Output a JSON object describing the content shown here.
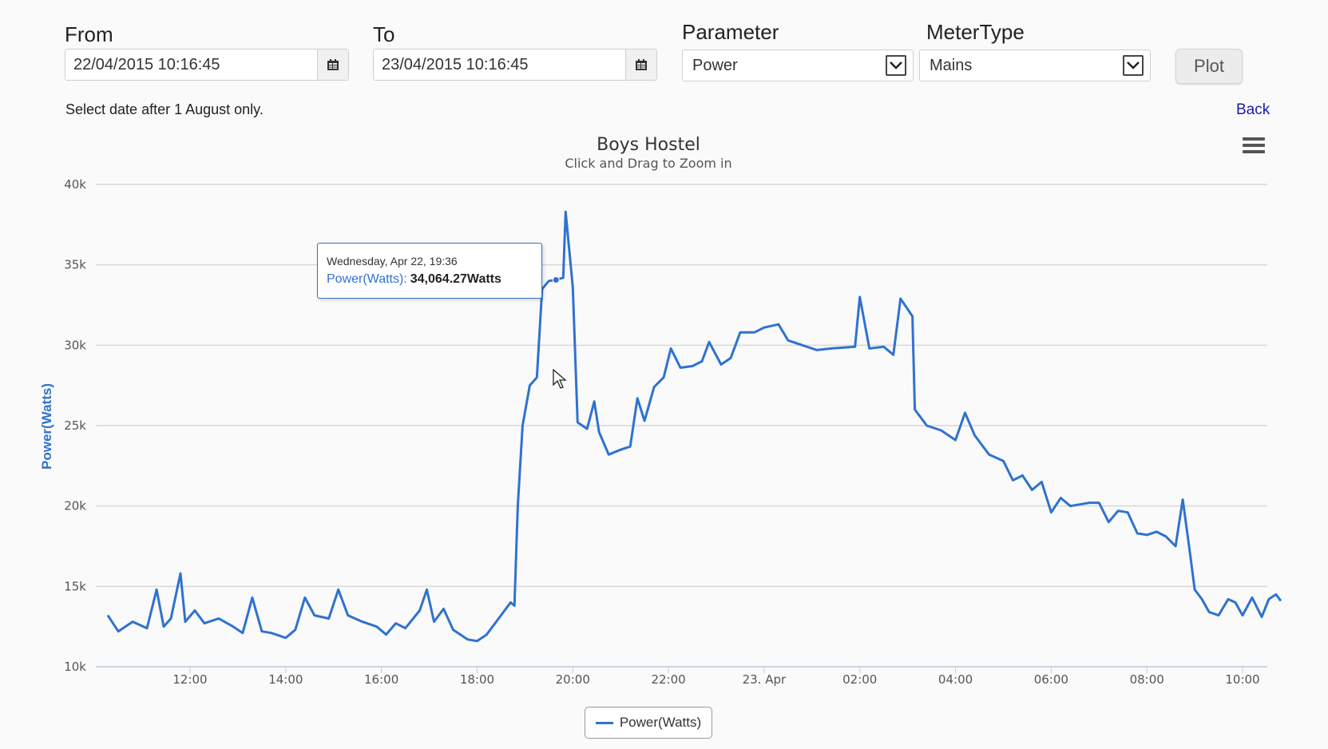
{
  "form": {
    "from_label": "From",
    "from_value": "22/04/2015 10:16:45",
    "to_label": "To",
    "to_value": "23/04/2015 10:16:45",
    "parameter_label": "Parameter",
    "parameter_value": "Power",
    "metertype_label": "MeterType",
    "metertype_value": "Mains",
    "plot_label": "Plot",
    "hint": "Select date after 1 August only.",
    "back_label": "Back"
  },
  "icons": {
    "calendar": "calendar-icon",
    "dropdown": "chevron-down-icon",
    "menu": "hamburger-menu-icon",
    "cursor": "mouse-pointer-icon"
  },
  "tooltip": {
    "date": "Wednesday, Apr 22, 19:36",
    "series": "Power(Watts):",
    "value": "34,064.27Watts"
  },
  "chart_data": {
    "type": "line",
    "title": "Boys Hostel",
    "subtitle": "Click and Drag to Zoom in",
    "ylabel": "Power(Watts)",
    "xlabel": "",
    "ylim": [
      10000,
      40000
    ],
    "yticks": [
      {
        "value": 10000,
        "label": "10k"
      },
      {
        "value": 15000,
        "label": "15k"
      },
      {
        "value": 20000,
        "label": "20k"
      },
      {
        "value": 25000,
        "label": "25k"
      },
      {
        "value": 30000,
        "label": "30k"
      },
      {
        "value": 35000,
        "label": "35k"
      },
      {
        "value": 40000,
        "label": "40k"
      }
    ],
    "xrange_hours": [
      10.28,
      34.8
    ],
    "xticks": [
      {
        "hour": 12,
        "label": "12:00"
      },
      {
        "hour": 14,
        "label": "14:00"
      },
      {
        "hour": 16,
        "label": "16:00"
      },
      {
        "hour": 18,
        "label": "18:00"
      },
      {
        "hour": 20,
        "label": "20:00"
      },
      {
        "hour": 22,
        "label": "22:00"
      },
      {
        "hour": 24,
        "label": "23. Apr"
      },
      {
        "hour": 26,
        "label": "02:00"
      },
      {
        "hour": 28,
        "label": "04:00"
      },
      {
        "hour": 30,
        "label": "06:00"
      },
      {
        "hour": 32,
        "label": "08:00"
      },
      {
        "hour": 34,
        "label": "10:00"
      }
    ],
    "grid": true,
    "legend_position": "bottom-center",
    "color": "#2f72cf",
    "series": [
      {
        "name": "Power(Watts)",
        "points": [
          [
            10.28,
            13200
          ],
          [
            10.5,
            12200
          ],
          [
            10.8,
            12800
          ],
          [
            11.1,
            12400
          ],
          [
            11.3,
            14800
          ],
          [
            11.45,
            12500
          ],
          [
            11.6,
            13000
          ],
          [
            11.8,
            15800
          ],
          [
            11.9,
            12800
          ],
          [
            12.1,
            13500
          ],
          [
            12.3,
            12700
          ],
          [
            12.6,
            13000
          ],
          [
            12.9,
            12500
          ],
          [
            13.1,
            12100
          ],
          [
            13.3,
            14300
          ],
          [
            13.5,
            12200
          ],
          [
            13.7,
            12100
          ],
          [
            14.0,
            11800
          ],
          [
            14.2,
            12300
          ],
          [
            14.4,
            14300
          ],
          [
            14.6,
            13200
          ],
          [
            14.9,
            13000
          ],
          [
            15.1,
            14800
          ],
          [
            15.3,
            13200
          ],
          [
            15.6,
            12800
          ],
          [
            15.9,
            12500
          ],
          [
            16.1,
            12000
          ],
          [
            16.3,
            12700
          ],
          [
            16.5,
            12400
          ],
          [
            16.8,
            13500
          ],
          [
            16.95,
            14800
          ],
          [
            17.1,
            12800
          ],
          [
            17.3,
            13600
          ],
          [
            17.5,
            12300
          ],
          [
            17.8,
            11700
          ],
          [
            18.0,
            11600
          ],
          [
            18.2,
            12000
          ],
          [
            18.4,
            12800
          ],
          [
            18.7,
            14000
          ],
          [
            18.78,
            13800
          ],
          [
            18.85,
            20000
          ],
          [
            18.95,
            25000
          ],
          [
            19.1,
            27500
          ],
          [
            19.25,
            28000
          ],
          [
            19.36,
            33500
          ],
          [
            19.5,
            34000
          ],
          [
            19.65,
            34064
          ],
          [
            19.8,
            34200
          ],
          [
            19.85,
            38300
          ],
          [
            20.0,
            33600
          ],
          [
            20.1,
            25200
          ],
          [
            20.3,
            24800
          ],
          [
            20.45,
            26500
          ],
          [
            20.55,
            24600
          ],
          [
            20.75,
            23200
          ],
          [
            21.0,
            23500
          ],
          [
            21.2,
            23700
          ],
          [
            21.35,
            26700
          ],
          [
            21.5,
            25300
          ],
          [
            21.7,
            27400
          ],
          [
            21.9,
            28000
          ],
          [
            22.05,
            29800
          ],
          [
            22.25,
            28600
          ],
          [
            22.5,
            28700
          ],
          [
            22.7,
            29000
          ],
          [
            22.85,
            30200
          ],
          [
            23.1,
            28800
          ],
          [
            23.3,
            29200
          ],
          [
            23.5,
            30800
          ],
          [
            23.8,
            30800
          ],
          [
            24.0,
            31100
          ],
          [
            24.3,
            31300
          ],
          [
            24.5,
            30300
          ],
          [
            24.8,
            30000
          ],
          [
            25.1,
            29700
          ],
          [
            25.4,
            29800
          ],
          [
            25.9,
            29900
          ],
          [
            26.0,
            33000
          ],
          [
            26.2,
            29800
          ],
          [
            26.5,
            29900
          ],
          [
            26.7,
            29400
          ],
          [
            26.85,
            32900
          ],
          [
            27.1,
            31800
          ],
          [
            27.15,
            26000
          ],
          [
            27.4,
            25000
          ],
          [
            27.7,
            24700
          ],
          [
            28.0,
            24100
          ],
          [
            28.2,
            25800
          ],
          [
            28.4,
            24400
          ],
          [
            28.7,
            23200
          ],
          [
            29.0,
            22800
          ],
          [
            29.2,
            21600
          ],
          [
            29.4,
            21900
          ],
          [
            29.6,
            21000
          ],
          [
            29.8,
            21500
          ],
          [
            30.0,
            19600
          ],
          [
            30.2,
            20500
          ],
          [
            30.4,
            20000
          ],
          [
            30.6,
            20100
          ],
          [
            30.8,
            20200
          ],
          [
            31.0,
            20200
          ],
          [
            31.2,
            19000
          ],
          [
            31.4,
            19700
          ],
          [
            31.6,
            19600
          ],
          [
            31.8,
            18300
          ],
          [
            32.0,
            18200
          ],
          [
            32.2,
            18400
          ],
          [
            32.4,
            18100
          ],
          [
            32.6,
            17500
          ],
          [
            32.75,
            20400
          ],
          [
            32.9,
            17100
          ],
          [
            33.0,
            14800
          ],
          [
            33.15,
            14200
          ],
          [
            33.3,
            13400
          ],
          [
            33.5,
            13200
          ],
          [
            33.7,
            14200
          ],
          [
            33.85,
            14000
          ],
          [
            34.0,
            13200
          ],
          [
            34.2,
            14300
          ],
          [
            34.3,
            13700
          ],
          [
            34.4,
            13100
          ],
          [
            34.55,
            14200
          ],
          [
            34.7,
            14500
          ],
          [
            34.8,
            14100
          ]
        ]
      }
    ]
  }
}
